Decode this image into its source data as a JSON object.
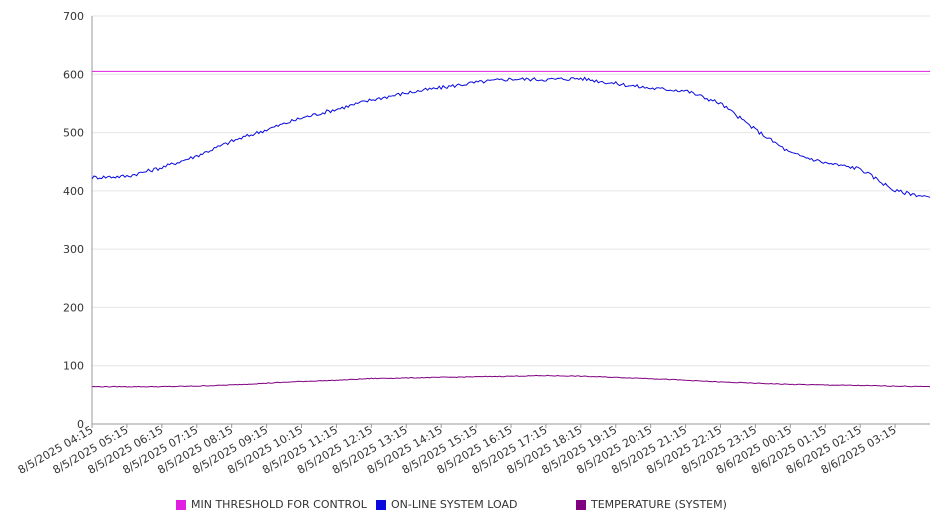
{
  "chart_data": {
    "type": "line",
    "title": "",
    "xlabel": "",
    "ylabel": "",
    "ylim": [
      0,
      700
    ],
    "yticks": [
      0,
      100,
      200,
      300,
      400,
      500,
      600,
      700
    ],
    "grid": true,
    "legend_position": "bottom",
    "x_tick_labels": [
      "8/5/2025 04:15",
      "8/5/2025 05:15",
      "8/5/2025 06:15",
      "8/5/2025 07:15",
      "8/5/2025 08:15",
      "8/5/2025 09:15",
      "8/5/2025 10:15",
      "8/5/2025 11:15",
      "8/5/2025 12:15",
      "8/5/2025 13:15",
      "8/5/2025 14:15",
      "8/5/2025 15:15",
      "8/5/2025 16:15",
      "8/5/2025 17:15",
      "8/5/2025 18:15",
      "8/5/2025 19:15",
      "8/5/2025 20:15",
      "8/5/2025 21:15",
      "8/5/2025 22:15",
      "8/5/2025 23:15",
      "8/6/2025 00:15",
      "8/6/2025 01:15",
      "8/6/2025 02:15",
      "8/6/2025 03:15"
    ],
    "x": [
      "8/5/2025 04:15",
      "8/5/2025 05:15",
      "8/5/2025 06:15",
      "8/5/2025 07:15",
      "8/5/2025 08:15",
      "8/5/2025 09:15",
      "8/5/2025 10:15",
      "8/5/2025 11:15",
      "8/5/2025 12:15",
      "8/5/2025 13:15",
      "8/5/2025 14:15",
      "8/5/2025 15:15",
      "8/5/2025 16:15",
      "8/5/2025 17:15",
      "8/5/2025 18:15",
      "8/5/2025 19:15",
      "8/5/2025 20:15",
      "8/5/2025 21:15",
      "8/5/2025 22:15",
      "8/5/2025 23:15",
      "8/6/2025 00:15",
      "8/6/2025 01:15",
      "8/6/2025 02:15",
      "8/6/2025 03:15",
      "8/6/2025 04:00"
    ],
    "series": [
      {
        "name": "MIN THRESHOLD FOR CONTROL",
        "color": "#e020e0",
        "values": [
          605,
          605,
          605,
          605,
          605,
          605,
          605,
          605,
          605,
          605,
          605,
          605,
          605,
          605,
          605,
          605,
          605,
          605,
          605,
          605,
          605,
          605,
          605,
          605,
          605
        ]
      },
      {
        "name": "ON-LINE SYSTEM LOAD",
        "color": "#0a0adc",
        "values": [
          423,
          425,
          440,
          460,
          485,
          505,
          525,
          540,
          556,
          568,
          577,
          586,
          592,
          591,
          593,
          584,
          576,
          572,
          550,
          505,
          465,
          448,
          438,
          400,
          389
        ]
      },
      {
        "name": "TEMPERATURE (SYSTEM)",
        "color": "#800080",
        "values": [
          64,
          64,
          64,
          65,
          67,
          70,
          73,
          75,
          78,
          79,
          80,
          81,
          82,
          83,
          82,
          80,
          78,
          75,
          72,
          70,
          68,
          67,
          66,
          65,
          64
        ]
      }
    ]
  }
}
